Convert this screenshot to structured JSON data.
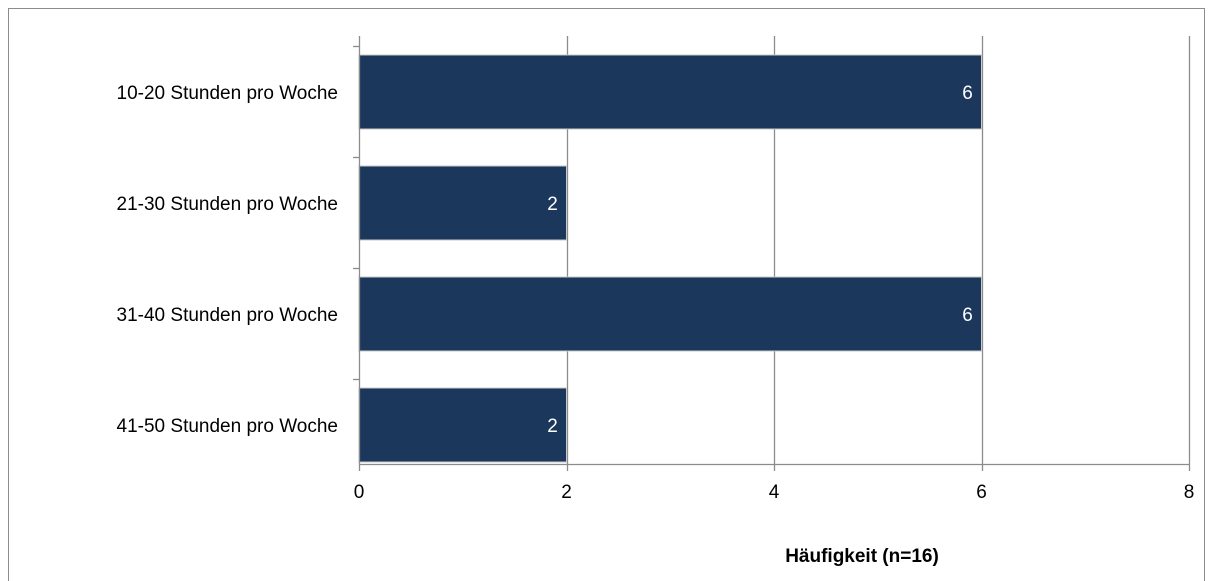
{
  "chart_data": {
    "type": "bar",
    "orientation": "horizontal",
    "categories": [
      "10-20 Stunden pro Woche",
      "21-30 Stunden pro Woche",
      "31-40 Stunden pro Woche",
      "41-50 Stunden pro Woche"
    ],
    "values": [
      6,
      2,
      6,
      2
    ],
    "xlabel": "Häufigkeit (n=16)",
    "xlim": [
      0,
      8
    ],
    "xticks": [
      0,
      2,
      4,
      6,
      8
    ],
    "grid": true,
    "legend": "none",
    "bar_color": "#1b375c",
    "grid_color": "#8c8c8c"
  }
}
